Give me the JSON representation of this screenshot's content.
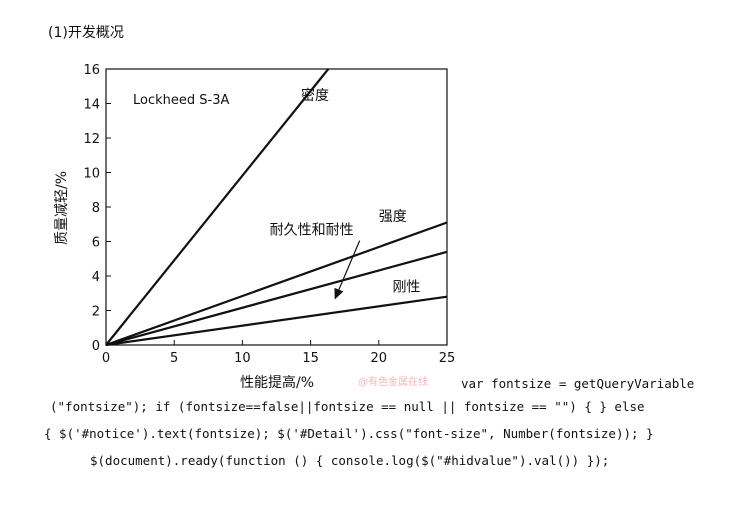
{
  "heading": "(1)开发概况",
  "watermark": "@有色金属在线",
  "code_lines": [
    "var fontsize = getQueryVariable",
    "(\"fontsize\"); if (fontsize==false||fontsize == null || fontsize == \"\") { } else",
    "{ $('#notice').text(fontsize); $('#Detail').css(\"font-size\", Number(fontsize)); }",
    "$(document).ready(function () { console.log($(\"#hidvalue\").val()) });"
  ],
  "chart_data": {
    "type": "line",
    "title": "Lockheed S-3A",
    "xlabel": "性能提高/%",
    "ylabel": "质量减轻/%",
    "xlim": [
      0,
      25
    ],
    "ylim": [
      0,
      16
    ],
    "xticks": [
      0,
      5,
      10,
      15,
      20,
      25
    ],
    "yticks": [
      0,
      2,
      4,
      6,
      8,
      10,
      12,
      14,
      16
    ],
    "grid": false,
    "series": [
      {
        "name": "密度",
        "x": [
          0,
          16.3
        ],
        "y": [
          0,
          16
        ]
      },
      {
        "name": "强度",
        "x": [
          0,
          25
        ],
        "y": [
          0,
          7.1
        ]
      },
      {
        "name": "耐久性和耐性",
        "x": [
          0,
          25
        ],
        "y": [
          0,
          5.4
        ]
      },
      {
        "name": "刚性",
        "x": [
          0,
          25
        ],
        "y": [
          0,
          2.8
        ]
      }
    ],
    "annotations": [
      {
        "text": "密度",
        "x": 14.3,
        "y": 14.2
      },
      {
        "text": "强度",
        "x": 20.0,
        "y": 7.2
      },
      {
        "text": "耐久性和耐性",
        "x": 12.0,
        "y": 6.4,
        "arrow_to": [
          16.8,
          2.7
        ]
      },
      {
        "text": "刚性",
        "x": 21.0,
        "y": 3.1
      }
    ],
    "colors": {
      "line": "#111111",
      "axis": "#111111",
      "watermark": "#f2b8b8"
    }
  }
}
